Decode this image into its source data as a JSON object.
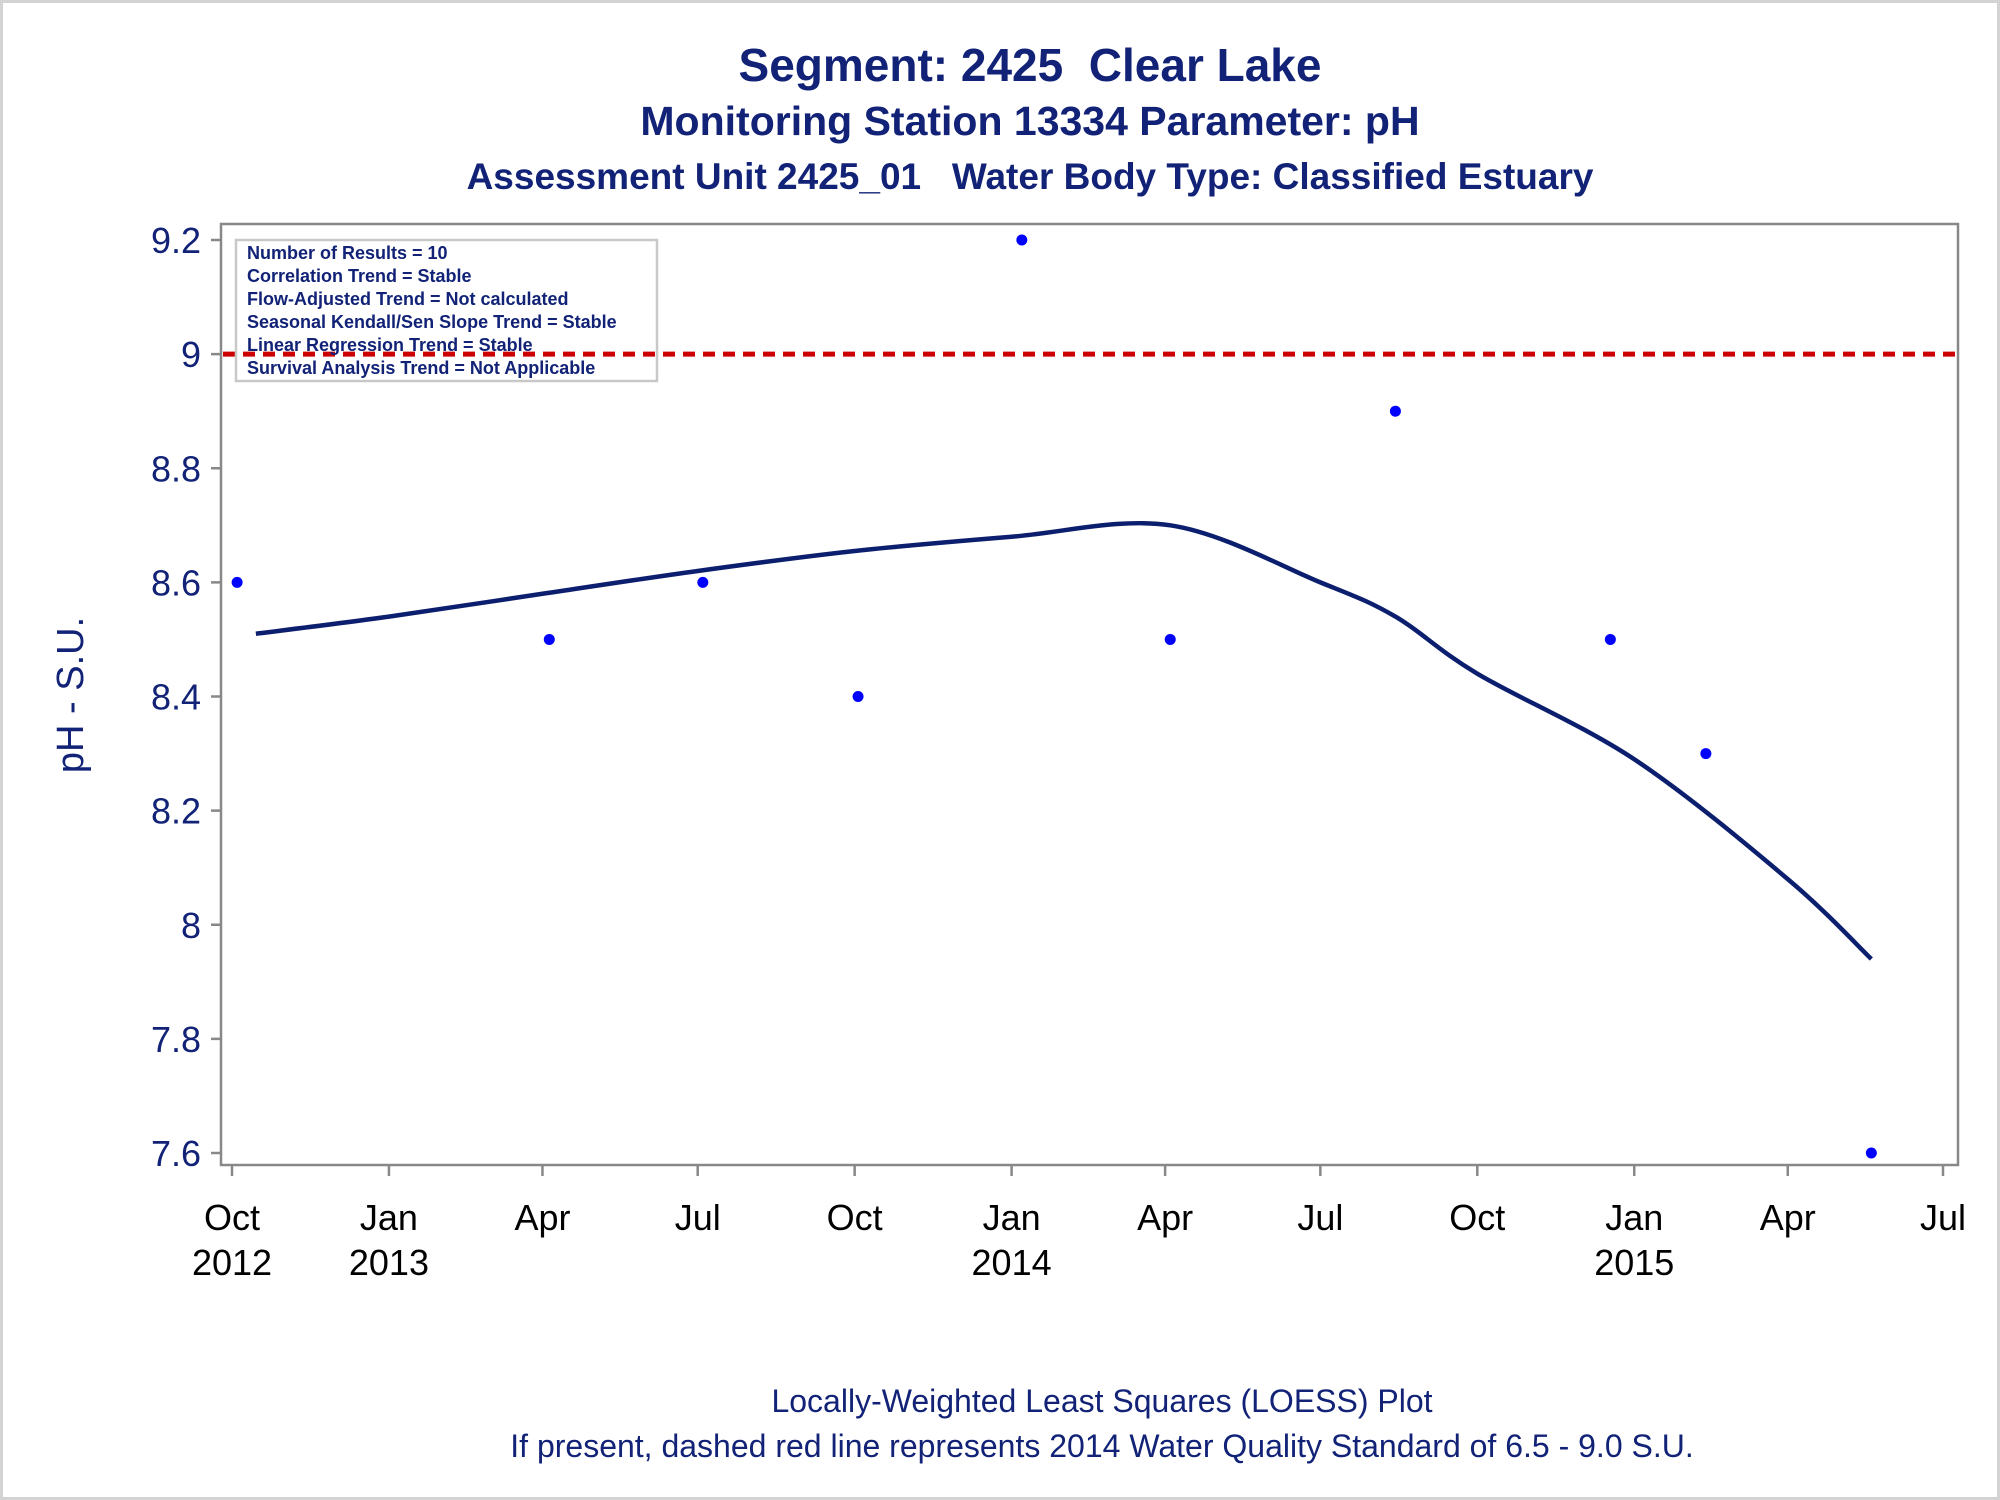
{
  "titles": {
    "line1": "Segment: 2425  Clear Lake",
    "line2": "Monitoring Station 13334 Parameter: pH",
    "line3": "Assessment Unit 2425_01   Water Body Type: Classified Estuary"
  },
  "footnotes": {
    "line1": "Locally-Weighted Least Squares (LOESS) Plot",
    "line2": "If present, dashed red line represents 2014 Water Quality Standard of 6.5 - 9.0 S.U."
  },
  "inset": {
    "lines": [
      "Number of Results = 10",
      "Correlation Trend = Stable",
      "Flow-Adjusted Trend = Not calculated",
      "Seasonal Kendall/Sen Slope Trend = Stable",
      "Linear Regression Trend = Stable",
      "Survival Analysis Trend = Not Applicable"
    ]
  },
  "colors": {
    "title": "#112277",
    "points": "#0000ff",
    "loess": "#0c1f6e",
    "standard_line": "#cc0000",
    "axis": "#888888"
  },
  "chart_data": {
    "type": "scatter",
    "title": "Segment: 2425  Clear Lake",
    "ylabel": "pH - S.U.",
    "xlabel": "",
    "xlim": [
      "2012-10-01",
      "2015-07-01"
    ],
    "ylim": [
      7.6,
      9.2
    ],
    "yticks": [
      7.6,
      7.8,
      8,
      8.2,
      8.4,
      8.6,
      8.8,
      9,
      9.2
    ],
    "ytick_labels": [
      "7.6",
      "7.8",
      "8",
      "8.2",
      "8.4",
      "8.6",
      "8.8",
      "9",
      "9.2"
    ],
    "xticks": [
      {
        "date": "2012-10-01",
        "label": "Oct",
        "year": "2012"
      },
      {
        "date": "2013-01-01",
        "label": "Jan",
        "year": "2013"
      },
      {
        "date": "2013-04-01",
        "label": "Apr",
        "year": ""
      },
      {
        "date": "2013-07-01",
        "label": "Jul",
        "year": ""
      },
      {
        "date": "2013-10-01",
        "label": "Oct",
        "year": ""
      },
      {
        "date": "2014-01-01",
        "label": "Jan",
        "year": "2014"
      },
      {
        "date": "2014-04-01",
        "label": "Apr",
        "year": ""
      },
      {
        "date": "2014-07-01",
        "label": "Jul",
        "year": ""
      },
      {
        "date": "2014-10-01",
        "label": "Oct",
        "year": ""
      },
      {
        "date": "2015-01-01",
        "label": "Jan",
        "year": "2015"
      },
      {
        "date": "2015-04-01",
        "label": "Apr",
        "year": ""
      },
      {
        "date": "2015-07-01",
        "label": "Jul",
        "year": ""
      }
    ],
    "series": [
      {
        "kind": "scatter",
        "points": [
          {
            "x": "2012-10-04",
            "y": 8.6
          },
          {
            "x": "2013-04-05",
            "y": 8.5
          },
          {
            "x": "2013-07-04",
            "y": 8.6
          },
          {
            "x": "2013-10-03",
            "y": 8.4
          },
          {
            "x": "2014-01-07",
            "y": 9.2
          },
          {
            "x": "2014-04-04",
            "y": 8.5
          },
          {
            "x": "2014-08-14",
            "y": 8.9
          },
          {
            "x": "2014-12-18",
            "y": 8.5
          },
          {
            "x": "2015-02-12",
            "y": 8.3
          },
          {
            "x": "2015-05-20",
            "y": 7.6
          }
        ]
      },
      {
        "kind": "line",
        "points": [
          {
            "x": "2012-10-15",
            "y": 8.51
          },
          {
            "x": "2013-01-01",
            "y": 8.54
          },
          {
            "x": "2013-04-01",
            "y": 8.58
          },
          {
            "x": "2013-07-01",
            "y": 8.62
          },
          {
            "x": "2013-10-01",
            "y": 8.655
          },
          {
            "x": "2014-01-01",
            "y": 8.68
          },
          {
            "x": "2014-04-04",
            "y": 8.7
          },
          {
            "x": "2014-07-01",
            "y": 8.6
          },
          {
            "x": "2014-08-14",
            "y": 8.54
          },
          {
            "x": "2014-10-01",
            "y": 8.44
          },
          {
            "x": "2015-01-01",
            "y": 8.29
          },
          {
            "x": "2015-04-01",
            "y": 8.08
          },
          {
            "x": "2015-05-20",
            "y": 7.94
          }
        ]
      }
    ],
    "reference_line": {
      "y": 9.0,
      "style": "dashed"
    },
    "grid": false,
    "inset_placement": "top-left"
  }
}
